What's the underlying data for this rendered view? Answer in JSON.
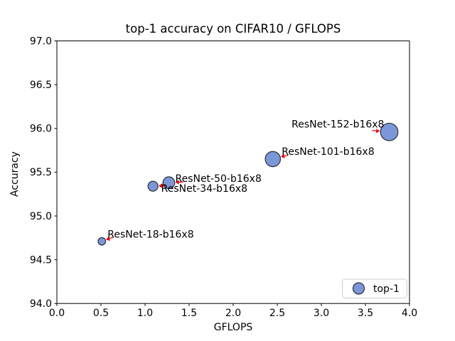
{
  "chart_data": {
    "type": "scatter",
    "title": "top-1 accuracy on CIFAR10 / GFLOPS",
    "xlabel": "GFLOPS",
    "ylabel": "Accuracy",
    "xlim": [
      0.0,
      4.0
    ],
    "ylim": [
      94.0,
      97.0
    ],
    "xticks": [
      "0.0",
      "0.5",
      "1.0",
      "1.5",
      "2.0",
      "2.5",
      "3.0",
      "3.5",
      "4.0"
    ],
    "yticks": [
      "97.0",
      "96.5",
      "96.0",
      "95.5",
      "95.0",
      "94.5",
      "94.0"
    ],
    "grid": false,
    "legend": {
      "label": "top-1",
      "position": "lower-right"
    },
    "series": [
      {
        "name": "top-1",
        "marker": "circle-sized-by-model",
        "points": [
          {
            "label": "ResNet-18-b16x8",
            "gflops": 0.51,
            "accuracy": 94.71,
            "marker_radius_px": 5.3,
            "label_anchor": "start",
            "label_dx": 8,
            "label_dy": -5,
            "arrow_angle_deg": -20
          },
          {
            "label": "ResNet-34-b16x8",
            "gflops": 1.09,
            "accuracy": 95.34,
            "marker_radius_px": 7.0,
            "label_anchor": "start",
            "label_dx": 11.5,
            "label_dy": 8,
            "arrow_angle_deg": -3
          },
          {
            "label": "ResNet-50-b16x8",
            "gflops": 1.27,
            "accuracy": 95.38,
            "marker_radius_px": 8.3,
            "label_anchor": "start",
            "label_dx": 9,
            "label_dy": -1,
            "arrow_angle_deg": -3
          },
          {
            "label": "ResNet-101-b16x8",
            "gflops": 2.45,
            "accuracy": 95.65,
            "marker_radius_px": 10.7,
            "label_anchor": "start",
            "label_dx": 12.5,
            "label_dy": -6,
            "arrow_angle_deg": -15
          },
          {
            "label": "ResNet-152-b16x8",
            "gflops": 3.77,
            "accuracy": 95.96,
            "marker_radius_px": 12.3,
            "label_anchor": "end",
            "label_dx": -7,
            "label_dy": -6,
            "arrow_angle_deg": 185
          }
        ]
      }
    ],
    "colors": {
      "marker_fill": "#7b97d8",
      "marker_edge": "#2b2f36",
      "annotation_arrow": "#e8000b",
      "axis": "#000000",
      "legend_border": "#cccccc",
      "background": "#ffffff"
    }
  }
}
